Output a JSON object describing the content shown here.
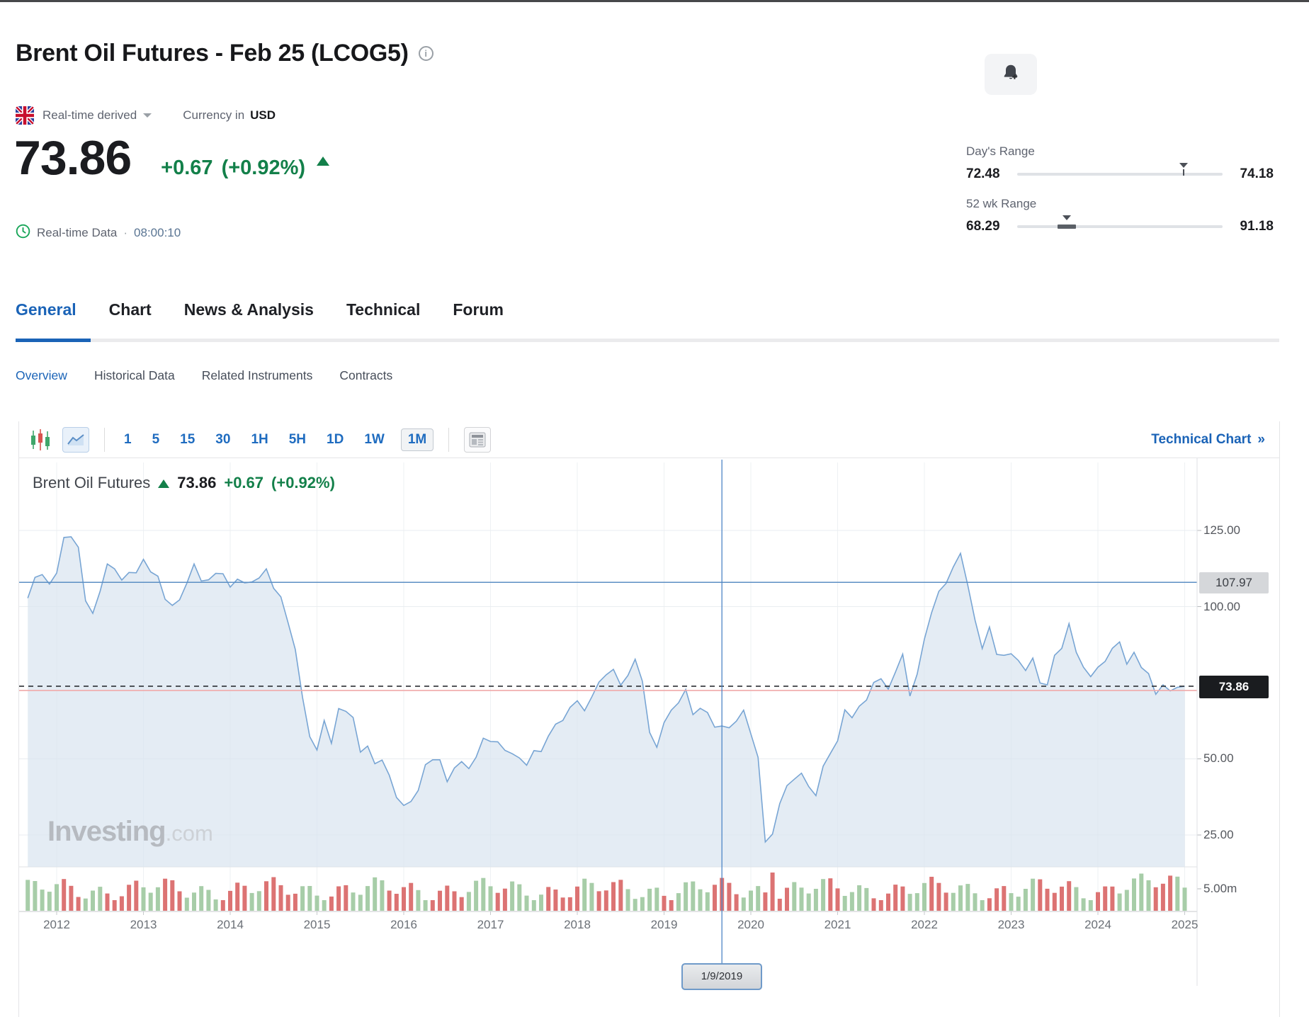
{
  "header": {
    "title": "Brent Oil Futures - Feb 25 (LCOG5)",
    "market_status": "Real-time derived",
    "currency_label": "Currency in",
    "currency": "USD",
    "price": "73.86",
    "change": "+0.67",
    "change_pct": "(+0.92%)",
    "data_type_label": "Real-time Data",
    "separator": "·",
    "time": "08:00:10",
    "days_range": {
      "label": "Day's Range",
      "low": "72.48",
      "high": "74.18",
      "position_pct": 81
    },
    "wk52_range": {
      "label": "52 wk Range",
      "low": "68.29",
      "high": "91.18",
      "position_pct": 24
    }
  },
  "tabs": {
    "items": [
      "General",
      "Chart",
      "News & Analysis",
      "Technical",
      "Forum"
    ],
    "active": "General"
  },
  "subnav": {
    "items": [
      "Overview",
      "Historical Data",
      "Related Instruments",
      "Contracts"
    ],
    "active": "Overview"
  },
  "toolbar": {
    "timeframes": [
      "1",
      "5",
      "15",
      "30",
      "1H",
      "5H",
      "1D",
      "1W",
      "1M"
    ],
    "active_timeframe": "1M",
    "technical_chart_label": "Technical Chart",
    "chevron": "»"
  },
  "chart": {
    "legend": {
      "name": "Brent Oil Futures",
      "price": "73.86",
      "change": "+0.67",
      "change_pct": "(+0.92%)"
    },
    "watermark": {
      "brand": "Investing",
      "domain": ".com"
    },
    "y_axis_labels": [
      "125.00",
      "100.00",
      "50.00",
      "25.00"
    ],
    "volume_axis_label": "5.00m",
    "level_line_label": "107.97",
    "last_price_label": "73.86",
    "x_axis_labels": [
      "2012",
      "2013",
      "2014",
      "2015",
      "2016",
      "2017",
      "2018",
      "2019",
      "2020",
      "2021",
      "2022",
      "2023",
      "2024",
      "2025"
    ],
    "tooltip_date": "1/9/2019"
  },
  "icons": {
    "info-icon": "i",
    "dropdown-caret": "triangle-down",
    "price-up-icon": "triangle-up",
    "clock-icon": "clock",
    "bell-add-icon": "bell-plus",
    "uk-flag-icon": "uk-flag",
    "candlestick-icon": "candles",
    "area-chart-icon": "line-area",
    "news-layout-icon": "newspaper",
    "chevron-right-icon": "»"
  },
  "chart_data": {
    "type": "area",
    "title": "Brent Oil Futures monthly price (USD)",
    "x_start_decimal_year": 2011.6667,
    "x_step_months": 1,
    "x_ticks_years": [
      2012,
      2013,
      2014,
      2015,
      2016,
      2017,
      2018,
      2019,
      2020,
      2021,
      2022,
      2023,
      2024,
      2025
    ],
    "y_ticks": [
      125,
      100,
      50,
      25
    ],
    "ylim": [
      14,
      133
    ],
    "grid": true,
    "legend_position": "top-left",
    "reference_lines": {
      "level_line": 107.97,
      "last_price": 73.86
    },
    "crosshair": {
      "date_label": "1/9/2019",
      "decimal_year": 2019.6667
    },
    "volume_axis_top_label": "5.00m",
    "values": [
      102.8,
      109.6,
      110.5,
      107.4,
      111.0,
      122.7,
      122.9,
      119.5,
      101.9,
      97.8,
      105.0,
      114.0,
      112.4,
      108.7,
      111.2,
      111.1,
      115.5,
      111.4,
      110.0,
      102.4,
      100.4,
      102.2,
      107.7,
      114.0,
      108.4,
      108.8,
      110.9,
      110.8,
      106.4,
      109.0,
      107.8,
      108.1,
      109.4,
      112.4,
      106.0,
      103.2,
      94.7,
      85.9,
      70.2,
      57.3,
      52.9,
      62.6,
      55.1,
      66.5,
      65.6,
      63.6,
      52.2,
      54.2,
      48.4,
      49.6,
      44.6,
      37.3,
      34.7,
      36.0,
      39.6,
      48.1,
      49.7,
      49.7,
      42.5,
      47.0,
      49.1,
      46.8,
      50.5,
      56.8,
      55.7,
      55.6,
      52.8,
      51.7,
      50.3,
      47.9,
      52.7,
      52.4,
      57.5,
      61.4,
      62.6,
      66.9,
      69.1,
      65.8,
      70.3,
      75.2,
      77.6,
      79.4,
      74.2,
      77.4,
      82.7,
      75.5,
      58.7,
      53.8,
      61.9,
      66.0,
      68.4,
      72.8,
      64.5,
      66.6,
      65.2,
      60.4,
      60.8,
      60.2,
      62.4,
      66.0,
      58.2,
      50.5,
      22.7,
      25.3,
      35.3,
      41.2,
      43.3,
      45.3,
      40.9,
      37.9,
      47.6,
      51.8,
      55.9,
      66.1,
      63.5,
      67.3,
      69.3,
      75.1,
      76.3,
      72.9,
      78.5,
      84.4,
      70.6,
      77.8,
      89.3,
      98.0,
      105.0,
      107.6,
      113.0,
      117.5,
      107.0,
      95.6,
      86.2,
      93.3,
      84.3,
      84.0,
      84.5,
      82.3,
      79.0,
      83.1,
      74.9,
      74.3,
      84.0,
      86.3,
      94.4,
      85.0,
      80.1,
      77.0,
      80.1,
      82.0,
      86.3,
      88.4,
      81.1,
      85.0,
      80.0,
      78.0,
      71.2,
      74.3,
      72.3,
      73.5,
      73.86
    ]
  }
}
